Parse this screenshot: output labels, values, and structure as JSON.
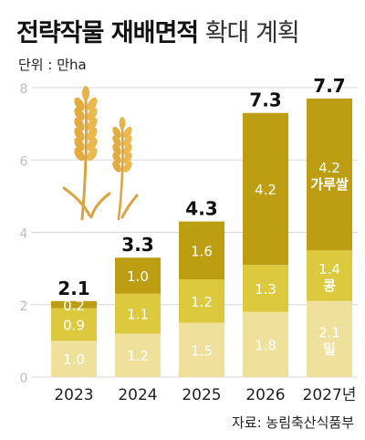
{
  "title": {
    "bold": "전략작물 재배면적",
    "light": "확대 계획"
  },
  "unit_label": "단위 : 만ha",
  "source": "자료: 농림축산식품부",
  "colors": {
    "wheat": "#efe09b",
    "bean": "#dcc93d",
    "rice_flour": "#bd9e12",
    "legacy_top": "#c9a31a",
    "grid": "#d8d8d8",
    "axis_text": "#bdbdbd"
  },
  "chart_data": {
    "type": "bar",
    "stacked": true,
    "categories": [
      "2023",
      "2024",
      "2025",
      "2026",
      "2027년"
    ],
    "ylim": [
      0,
      8
    ],
    "yticks": [
      0,
      2,
      4,
      6,
      8
    ],
    "series": [
      {
        "name": "밀",
        "values": [
          1.0,
          1.2,
          1.5,
          1.8,
          2.1
        ]
      },
      {
        "name": "콩",
        "values": [
          0.9,
          1.1,
          1.2,
          1.3,
          1.4
        ]
      },
      {
        "name": "가루쌀",
        "values": [
          0.2,
          1.0,
          1.6,
          4.2,
          4.2
        ]
      }
    ],
    "totals": [
      "2.1",
      "3.3",
      "4.3",
      "7.3",
      "7.7"
    ]
  }
}
